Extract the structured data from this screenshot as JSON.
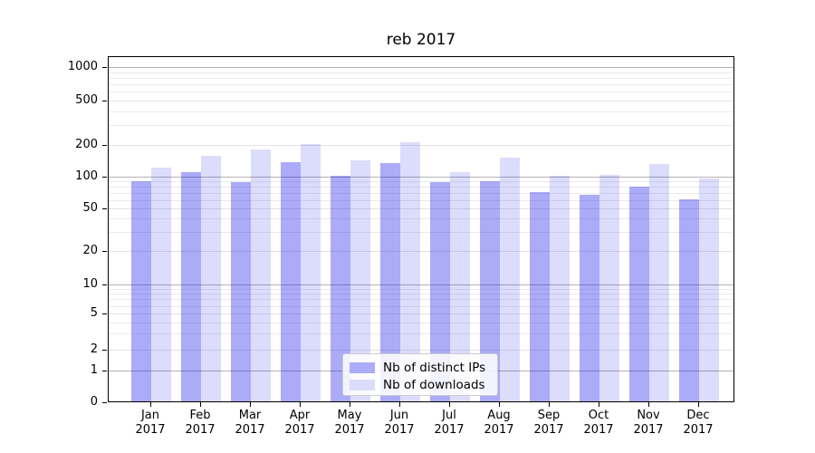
{
  "chart_data": {
    "type": "bar",
    "title": "reb 2017",
    "categories": [
      "Jan 2017",
      "Feb 2017",
      "Mar 2017",
      "Apr 2017",
      "May 2017",
      "Jun 2017",
      "Jul 2017",
      "Aug 2017",
      "Sep 2017",
      "Oct 2017",
      "Nov 2017",
      "Dec 2017"
    ],
    "series": [
      {
        "name": "Nb of distinct IPs",
        "color_hex": "#acacf8",
        "fill_rgba": "rgba(10,10,235,0.34)",
        "values": [
          90,
          110,
          88,
          137,
          101,
          135,
          88,
          91,
          71,
          67,
          81,
          61
        ]
      },
      {
        "name": "Nb of downloads",
        "color_hex": "#dcdcfc",
        "fill_rgba": "rgba(10,10,235,0.14)",
        "values": [
          123,
          158,
          180,
          202,
          144,
          210,
          110,
          152,
          102,
          105,
          133,
          97
        ]
      }
    ],
    "xlabel": "",
    "ylabel": "",
    "yscale": "symlog",
    "yticks": [
      0,
      1,
      2,
      5,
      10,
      20,
      50,
      100,
      200,
      500,
      1000
    ],
    "ylim": [
      0,
      1300
    ],
    "grid": true,
    "legend_position": "lower center"
  },
  "colors": {
    "grid_major": "#b4b4b4",
    "grid_minor": "#ebebeb",
    "grid_labeled": "#e3e3e3",
    "spine": "#000000",
    "background": "#ffffff"
  }
}
